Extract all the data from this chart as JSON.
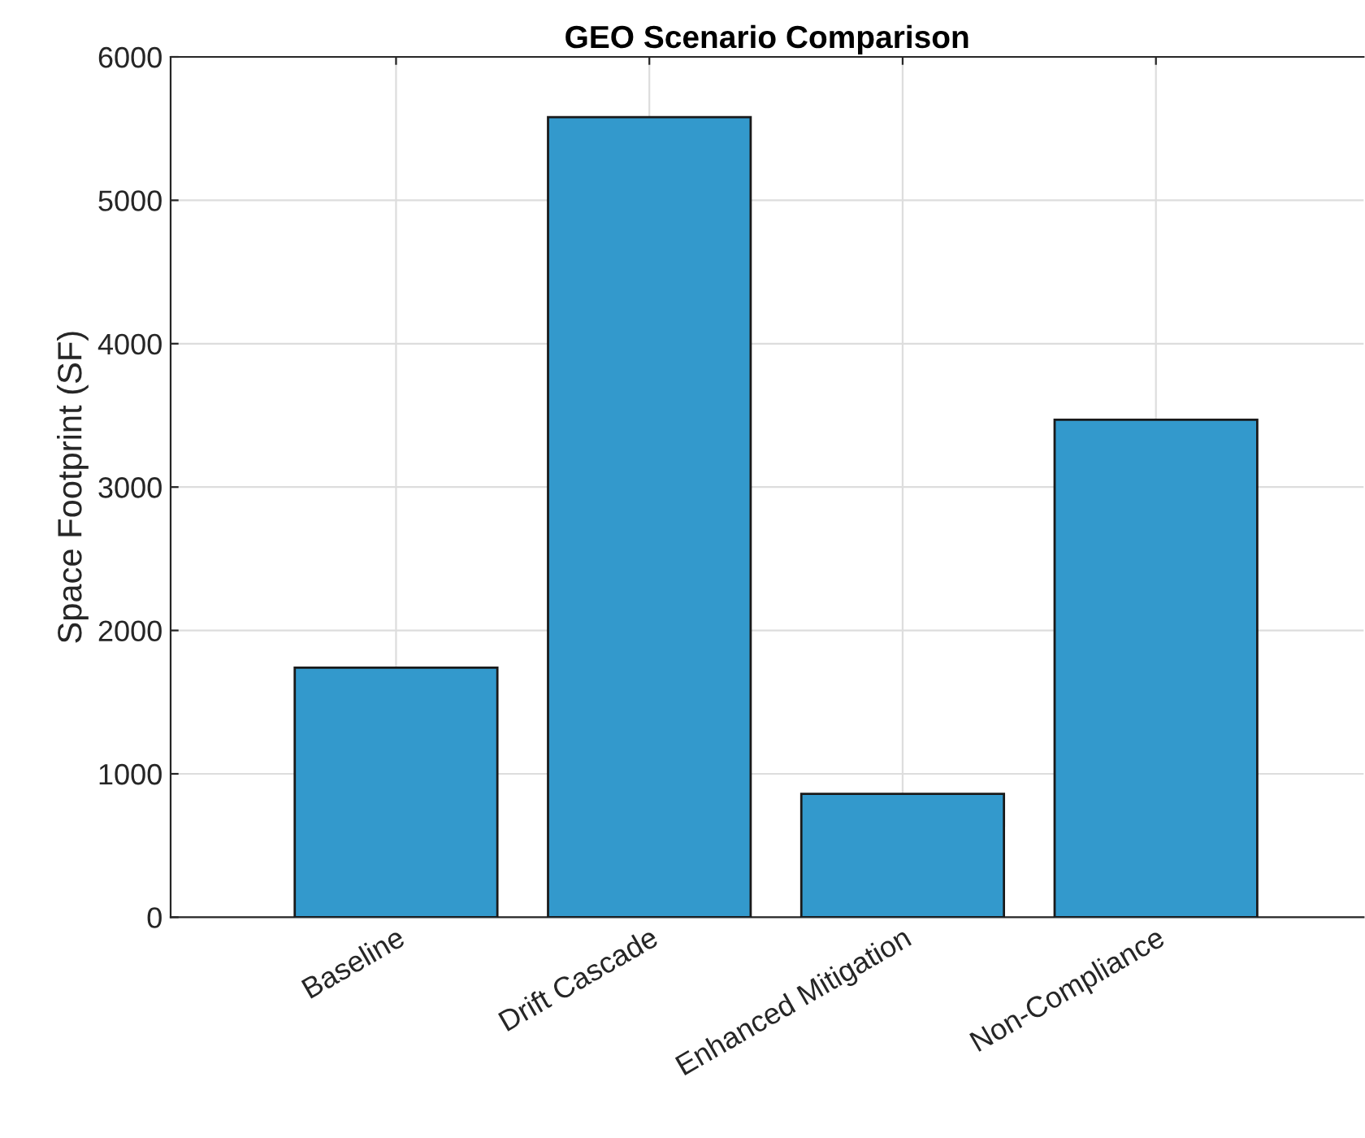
{
  "chart_data": {
    "type": "bar",
    "title": "GEO Scenario Comparison",
    "ylabel": "Space Footprint (SF)",
    "categories": [
      "Baseline",
      "Drift Cascade",
      "Enhanced Mitigation",
      "Non-Compliance"
    ],
    "values": [
      1740,
      5580,
      860,
      3470
    ],
    "color": "#3399cc",
    "ylim": [
      0,
      6000
    ],
    "yticks": [
      0,
      1000,
      2000,
      3000,
      4000,
      5000,
      6000
    ],
    "grid": true
  }
}
